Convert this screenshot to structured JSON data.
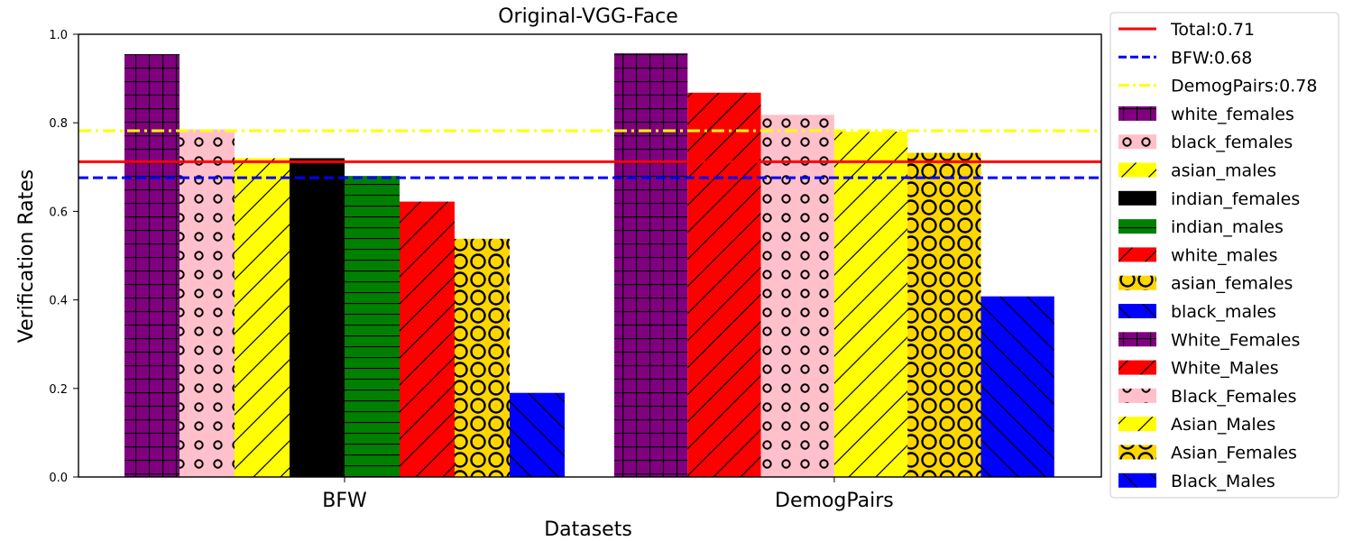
{
  "chart_data": {
    "type": "bar",
    "title": "Original-VGG-Face",
    "xlabel": "Datasets",
    "ylabel": "Verification Rates",
    "ylim": [
      0.0,
      1.0
    ],
    "yticks": [
      "0.0",
      "0.2",
      "0.4",
      "0.6",
      "0.8",
      "1.0"
    ],
    "categories": [
      "BFW",
      "DemogPairs"
    ],
    "groups": [
      {
        "category": "BFW",
        "bars": [
          {
            "name": "white_females",
            "value": 0.955,
            "color": "#800080",
            "pattern": "grid"
          },
          {
            "name": "black_females",
            "value": 0.785,
            "color": "#ffc0cb",
            "pattern": "small-circles"
          },
          {
            "name": "asian_males",
            "value": 0.72,
            "color": "#ffff00",
            "pattern": "slash"
          },
          {
            "name": "indian_females",
            "value": 0.72,
            "color": "#000000",
            "pattern": "none"
          },
          {
            "name": "indian_males",
            "value": 0.68,
            "color": "#008000",
            "pattern": "hlines"
          },
          {
            "name": "white_males",
            "value": 0.622,
            "color": "#ff0000",
            "pattern": "slash"
          },
          {
            "name": "asian_females",
            "value": 0.538,
            "color": "#ffd700",
            "pattern": "big-circles"
          },
          {
            "name": "black_males",
            "value": 0.19,
            "color": "#0000ff",
            "pattern": "backslash"
          }
        ]
      },
      {
        "category": "DemogPairs",
        "bars": [
          {
            "name": "White_Females",
            "value": 0.957,
            "color": "#800080",
            "pattern": "grid"
          },
          {
            "name": "White_Males",
            "value": 0.868,
            "color": "#ff0000",
            "pattern": "slash"
          },
          {
            "name": "Black_Females",
            "value": 0.818,
            "color": "#ffc0cb",
            "pattern": "small-circles"
          },
          {
            "name": "Asian_Males",
            "value": 0.78,
            "color": "#ffff00",
            "pattern": "slash"
          },
          {
            "name": "Asian_Females",
            "value": 0.732,
            "color": "#ffd700",
            "pattern": "big-circles"
          },
          {
            "name": "Black_Males",
            "value": 0.408,
            "color": "#0000ff",
            "pattern": "backslash"
          }
        ]
      }
    ],
    "reference_lines": [
      {
        "label": "Total:0.71",
        "value": 0.712,
        "color": "#ff0000",
        "style": "solid"
      },
      {
        "label": "BFW:0.68",
        "value": 0.676,
        "color": "#0000ff",
        "style": "dashed"
      },
      {
        "label": "DemogPairs:0.78",
        "value": 0.782,
        "color": "#ffff00",
        "style": "dashdot"
      }
    ],
    "legend": {
      "placement": "right outside",
      "entries": [
        {
          "label": "Total:0.71",
          "kind": "line",
          "color": "#ff0000",
          "style": "solid"
        },
        {
          "label": "BFW:0.68",
          "kind": "line",
          "color": "#0000ff",
          "style": "dashed"
        },
        {
          "label": "DemogPairs:0.78",
          "kind": "line",
          "color": "#ffff00",
          "style": "dashdot"
        },
        {
          "label": "white_females",
          "kind": "patch",
          "color": "#800080",
          "pattern": "grid"
        },
        {
          "label": "black_females",
          "kind": "patch",
          "color": "#ffc0cb",
          "pattern": "small-circles"
        },
        {
          "label": "asian_males",
          "kind": "patch",
          "color": "#ffff00",
          "pattern": "slash"
        },
        {
          "label": "indian_females",
          "kind": "patch",
          "color": "#000000",
          "pattern": "none"
        },
        {
          "label": "indian_males",
          "kind": "patch",
          "color": "#008000",
          "pattern": "hlines"
        },
        {
          "label": "white_males",
          "kind": "patch",
          "color": "#ff0000",
          "pattern": "slash"
        },
        {
          "label": "asian_females",
          "kind": "patch",
          "color": "#ffd700",
          "pattern": "big-circles"
        },
        {
          "label": "black_males",
          "kind": "patch",
          "color": "#0000ff",
          "pattern": "backslash"
        },
        {
          "label": "White_Females",
          "kind": "patch",
          "color": "#800080",
          "pattern": "grid"
        },
        {
          "label": "White_Males",
          "kind": "patch",
          "color": "#ff0000",
          "pattern": "slash"
        },
        {
          "label": "Black_Females",
          "kind": "patch",
          "color": "#ffc0cb",
          "pattern": "small-circles"
        },
        {
          "label": "Asian_Males",
          "kind": "patch",
          "color": "#ffff00",
          "pattern": "slash"
        },
        {
          "label": "Asian_Females",
          "kind": "patch",
          "color": "#ffd700",
          "pattern": "big-circles"
        },
        {
          "label": "Black_Males",
          "kind": "patch",
          "color": "#0000ff",
          "pattern": "backslash"
        }
      ]
    },
    "grid": false
  }
}
